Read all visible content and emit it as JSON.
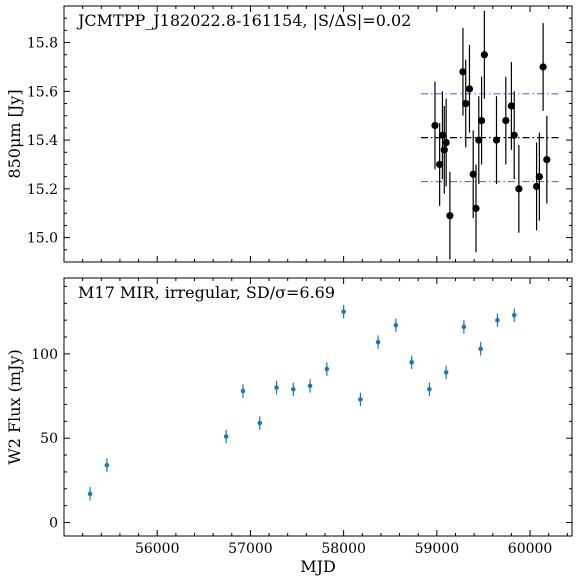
{
  "chart_data": [
    {
      "type": "scatter",
      "title": "JCMTPP_J182022.8-161154, |S/ΔS|=0.02",
      "ylabel": "850μm [Jy]",
      "xlabel": "",
      "ylim": [
        14.9,
        15.95
      ],
      "yticks": [
        15.0,
        15.2,
        15.4,
        15.6,
        15.8
      ],
      "ytick_labels": [
        "15.0",
        "15.2",
        "15.4",
        "15.6",
        "15.8"
      ],
      "grid": false,
      "mean": 15.41,
      "band": [
        15.23,
        15.59
      ],
      "points": [
        {
          "x": 58980,
          "y": 15.46,
          "err": 0.18
        },
        {
          "x": 59030,
          "y": 15.3,
          "err": 0.17
        },
        {
          "x": 59060,
          "y": 15.42,
          "err": 0.18
        },
        {
          "x": 59080,
          "y": 15.36,
          "err": 0.18
        },
        {
          "x": 59100,
          "y": 15.39,
          "err": 0.18
        },
        {
          "x": 59140,
          "y": 15.09,
          "err": 0.18
        },
        {
          "x": 59280,
          "y": 15.68,
          "err": 0.18
        },
        {
          "x": 59310,
          "y": 15.55,
          "err": 0.18
        },
        {
          "x": 59350,
          "y": 15.61,
          "err": 0.18
        },
        {
          "x": 59390,
          "y": 15.26,
          "err": 0.18
        },
        {
          "x": 59420,
          "y": 15.12,
          "err": 0.18
        },
        {
          "x": 59450,
          "y": 15.4,
          "err": 0.18
        },
        {
          "x": 59480,
          "y": 15.48,
          "err": 0.18
        },
        {
          "x": 59510,
          "y": 15.75,
          "err": 0.18
        },
        {
          "x": 59640,
          "y": 15.4,
          "err": 0.18
        },
        {
          "x": 59740,
          "y": 15.48,
          "err": 0.18
        },
        {
          "x": 59800,
          "y": 15.54,
          "err": 0.18
        },
        {
          "x": 59830,
          "y": 15.42,
          "err": 0.18
        },
        {
          "x": 59880,
          "y": 15.2,
          "err": 0.18
        },
        {
          "x": 60070,
          "y": 15.21,
          "err": 0.18
        },
        {
          "x": 60100,
          "y": 15.25,
          "err": 0.18
        },
        {
          "x": 60140,
          "y": 15.7,
          "err": 0.18
        },
        {
          "x": 60180,
          "y": 15.32,
          "err": 0.18
        }
      ]
    },
    {
      "type": "scatter",
      "title": "M17 MIR, irregular, SD/σ=6.69",
      "ylabel": "W2 Flux (mJy)",
      "xlabel": "MJD",
      "xlim": [
        55000,
        60450
      ],
      "ylim": [
        -8,
        145
      ],
      "xticks": [
        56000,
        57000,
        58000,
        59000,
        60000
      ],
      "xtick_labels": [
        "56000",
        "57000",
        "58000",
        "59000",
        "60000"
      ],
      "yticks": [
        0,
        50,
        100
      ],
      "ytick_labels": [
        "0",
        "50",
        "100"
      ],
      "grid": false,
      "color": "#1f77b4",
      "points": [
        {
          "x": 55280,
          "y": 17,
          "err": 4
        },
        {
          "x": 55460,
          "y": 34,
          "err": 4
        },
        {
          "x": 56740,
          "y": 51,
          "err": 4
        },
        {
          "x": 56920,
          "y": 78,
          "err": 4
        },
        {
          "x": 57100,
          "y": 59,
          "err": 4
        },
        {
          "x": 57280,
          "y": 80,
          "err": 4
        },
        {
          "x": 57460,
          "y": 79,
          "err": 4
        },
        {
          "x": 57640,
          "y": 81,
          "err": 4
        },
        {
          "x": 57820,
          "y": 91,
          "err": 4
        },
        {
          "x": 58000,
          "y": 125,
          "err": 4
        },
        {
          "x": 58180,
          "y": 73,
          "err": 4
        },
        {
          "x": 58370,
          "y": 107,
          "err": 4
        },
        {
          "x": 58560,
          "y": 117,
          "err": 4
        },
        {
          "x": 58730,
          "y": 95,
          "err": 4
        },
        {
          "x": 58920,
          "y": 79,
          "err": 4
        },
        {
          "x": 59100,
          "y": 89,
          "err": 4
        },
        {
          "x": 59290,
          "y": 116,
          "err": 4
        },
        {
          "x": 59470,
          "y": 103,
          "err": 4
        },
        {
          "x": 59650,
          "y": 120,
          "err": 4
        },
        {
          "x": 59830,
          "y": 123,
          "err": 4
        }
      ]
    }
  ]
}
